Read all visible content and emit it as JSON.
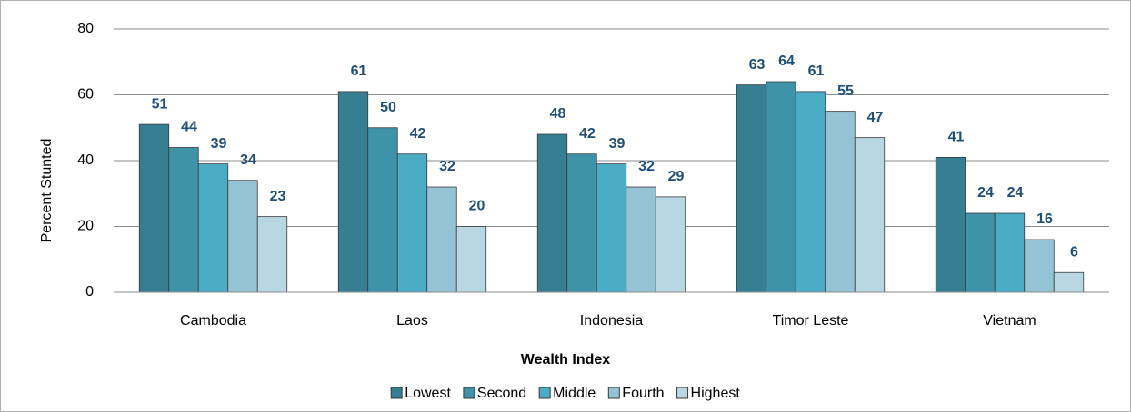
{
  "chart_data": {
    "type": "bar",
    "x_label": "Wealth Index",
    "y_label": "Percent Stunted",
    "categories": [
      "Cambodia",
      "Laos",
      "Indonesia",
      "Timor Leste",
      "Vietnam"
    ],
    "series": [
      {
        "name": "Lowest",
        "color": "#367f93",
        "values": [
          51,
          61,
          48,
          63,
          41
        ]
      },
      {
        "name": "Second",
        "color": "#3f93a9",
        "values": [
          44,
          50,
          42,
          64,
          24
        ]
      },
      {
        "name": "Middle",
        "color": "#4bacc6",
        "values": [
          39,
          42,
          39,
          61,
          24
        ]
      },
      {
        "name": "Fourth",
        "color": "#93c3d4",
        "values": [
          34,
          32,
          32,
          55,
          16
        ]
      },
      {
        "name": "Highest",
        "color": "#b9d7e2",
        "values": [
          23,
          20,
          29,
          47,
          6
        ]
      }
    ],
    "ylim": [
      0,
      80
    ],
    "yticks": [
      0,
      20,
      40,
      60,
      80
    ],
    "grid": true,
    "legend": "bottom"
  }
}
